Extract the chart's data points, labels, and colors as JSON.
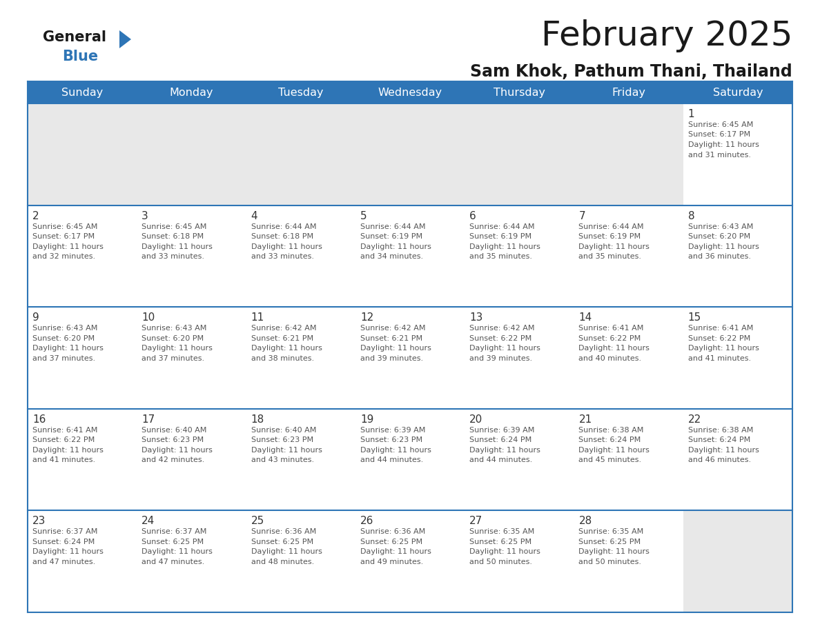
{
  "title": "February 2025",
  "subtitle": "Sam Khok, Pathum Thani, Thailand",
  "header_color": "#2E75B6",
  "header_text_color": "#FFFFFF",
  "border_color": "#2E75B6",
  "empty_cell_color": "#E8E8E8",
  "white": "#FFFFFF",
  "days_of_week": [
    "Sunday",
    "Monday",
    "Tuesday",
    "Wednesday",
    "Thursday",
    "Friday",
    "Saturday"
  ],
  "logo_general_color": "#1A1A1A",
  "logo_blue_color": "#2E75B6",
  "title_color": "#1A1A1A",
  "subtitle_color": "#1A1A1A",
  "day_num_color": "#333333",
  "info_color": "#555555",
  "calendar": [
    [
      null,
      null,
      null,
      null,
      null,
      null,
      {
        "day": "1",
        "sunrise": "6:45 AM",
        "sunset": "6:17 PM",
        "daylight_h": "11 hours",
        "daylight_m": "31 minutes."
      }
    ],
    [
      {
        "day": "2",
        "sunrise": "6:45 AM",
        "sunset": "6:17 PM",
        "daylight_h": "11 hours",
        "daylight_m": "32 minutes."
      },
      {
        "day": "3",
        "sunrise": "6:45 AM",
        "sunset": "6:18 PM",
        "daylight_h": "11 hours",
        "daylight_m": "33 minutes."
      },
      {
        "day": "4",
        "sunrise": "6:44 AM",
        "sunset": "6:18 PM",
        "daylight_h": "11 hours",
        "daylight_m": "33 minutes."
      },
      {
        "day": "5",
        "sunrise": "6:44 AM",
        "sunset": "6:19 PM",
        "daylight_h": "11 hours",
        "daylight_m": "34 minutes."
      },
      {
        "day": "6",
        "sunrise": "6:44 AM",
        "sunset": "6:19 PM",
        "daylight_h": "11 hours",
        "daylight_m": "35 minutes."
      },
      {
        "day": "7",
        "sunrise": "6:44 AM",
        "sunset": "6:19 PM",
        "daylight_h": "11 hours",
        "daylight_m": "35 minutes."
      },
      {
        "day": "8",
        "sunrise": "6:43 AM",
        "sunset": "6:20 PM",
        "daylight_h": "11 hours",
        "daylight_m": "36 minutes."
      }
    ],
    [
      {
        "day": "9",
        "sunrise": "6:43 AM",
        "sunset": "6:20 PM",
        "daylight_h": "11 hours",
        "daylight_m": "37 minutes."
      },
      {
        "day": "10",
        "sunrise": "6:43 AM",
        "sunset": "6:20 PM",
        "daylight_h": "11 hours",
        "daylight_m": "37 minutes."
      },
      {
        "day": "11",
        "sunrise": "6:42 AM",
        "sunset": "6:21 PM",
        "daylight_h": "11 hours",
        "daylight_m": "38 minutes."
      },
      {
        "day": "12",
        "sunrise": "6:42 AM",
        "sunset": "6:21 PM",
        "daylight_h": "11 hours",
        "daylight_m": "39 minutes."
      },
      {
        "day": "13",
        "sunrise": "6:42 AM",
        "sunset": "6:22 PM",
        "daylight_h": "11 hours",
        "daylight_m": "39 minutes."
      },
      {
        "day": "14",
        "sunrise": "6:41 AM",
        "sunset": "6:22 PM",
        "daylight_h": "11 hours",
        "daylight_m": "40 minutes."
      },
      {
        "day": "15",
        "sunrise": "6:41 AM",
        "sunset": "6:22 PM",
        "daylight_h": "11 hours",
        "daylight_m": "41 minutes."
      }
    ],
    [
      {
        "day": "16",
        "sunrise": "6:41 AM",
        "sunset": "6:22 PM",
        "daylight_h": "11 hours",
        "daylight_m": "41 minutes."
      },
      {
        "day": "17",
        "sunrise": "6:40 AM",
        "sunset": "6:23 PM",
        "daylight_h": "11 hours",
        "daylight_m": "42 minutes."
      },
      {
        "day": "18",
        "sunrise": "6:40 AM",
        "sunset": "6:23 PM",
        "daylight_h": "11 hours",
        "daylight_m": "43 minutes."
      },
      {
        "day": "19",
        "sunrise": "6:39 AM",
        "sunset": "6:23 PM",
        "daylight_h": "11 hours",
        "daylight_m": "44 minutes."
      },
      {
        "day": "20",
        "sunrise": "6:39 AM",
        "sunset": "6:24 PM",
        "daylight_h": "11 hours",
        "daylight_m": "44 minutes."
      },
      {
        "day": "21",
        "sunrise": "6:38 AM",
        "sunset": "6:24 PM",
        "daylight_h": "11 hours",
        "daylight_m": "45 minutes."
      },
      {
        "day": "22",
        "sunrise": "6:38 AM",
        "sunset": "6:24 PM",
        "daylight_h": "11 hours",
        "daylight_m": "46 minutes."
      }
    ],
    [
      {
        "day": "23",
        "sunrise": "6:37 AM",
        "sunset": "6:24 PM",
        "daylight_h": "11 hours",
        "daylight_m": "47 minutes."
      },
      {
        "day": "24",
        "sunrise": "6:37 AM",
        "sunset": "6:25 PM",
        "daylight_h": "11 hours",
        "daylight_m": "47 minutes."
      },
      {
        "day": "25",
        "sunrise": "6:36 AM",
        "sunset": "6:25 PM",
        "daylight_h": "11 hours",
        "daylight_m": "48 minutes."
      },
      {
        "day": "26",
        "sunrise": "6:36 AM",
        "sunset": "6:25 PM",
        "daylight_h": "11 hours",
        "daylight_m": "49 minutes."
      },
      {
        "day": "27",
        "sunrise": "6:35 AM",
        "sunset": "6:25 PM",
        "daylight_h": "11 hours",
        "daylight_m": "50 minutes."
      },
      {
        "day": "28",
        "sunrise": "6:35 AM",
        "sunset": "6:25 PM",
        "daylight_h": "11 hours",
        "daylight_m": "50 minutes."
      },
      null
    ]
  ]
}
